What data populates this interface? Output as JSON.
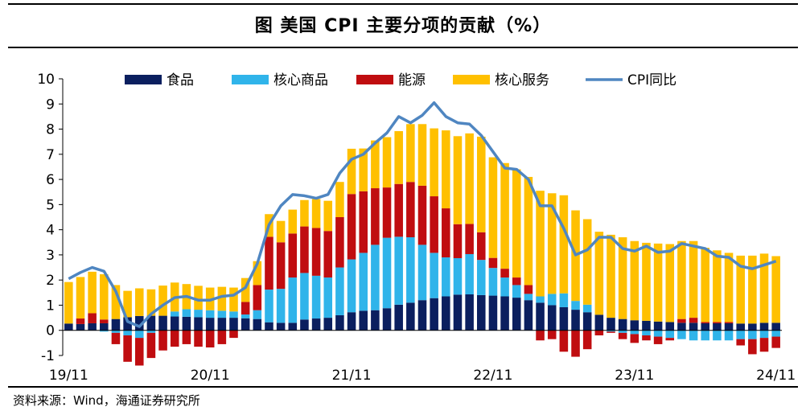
{
  "title": "图  美国 CPI 主要分项的贡献（%）",
  "source": "资料来源：Wind，海通证券研究所",
  "colors": {
    "food": "#0b1f5f",
    "core_goods": "#30b4ea",
    "energy": "#c00d10",
    "core_services": "#ffc000",
    "cpi_line": "#4f86c1"
  },
  "chart_data": {
    "type": "stacked-bar+line",
    "title": "美国 CPI 主要分项的贡献（%）",
    "xlabel": "",
    "ylabel": "",
    "ylim": [
      -1,
      10
    ],
    "yticks": [
      "-1",
      "0",
      "1",
      "2",
      "3",
      "4",
      "5",
      "6",
      "7",
      "8",
      "9",
      "10"
    ],
    "x_tick_labels": [
      {
        "label": "19/11",
        "index": 0
      },
      {
        "label": "20/11",
        "index": 12
      },
      {
        "label": "21/11",
        "index": 24
      },
      {
        "label": "22/11",
        "index": 36
      },
      {
        "label": "23/11",
        "index": 48
      },
      {
        "label": "24/11",
        "index": 60
      }
    ],
    "legend": [
      "食品",
      "核心商品",
      "能源",
      "核心服务",
      "CPI同比"
    ],
    "legend_position": "top",
    "grid": false,
    "categories": [
      "19/11",
      "19/12",
      "20/01",
      "20/02",
      "20/03",
      "20/04",
      "20/05",
      "20/06",
      "20/07",
      "20/08",
      "20/09",
      "20/10",
      "20/11",
      "20/12",
      "21/01",
      "21/02",
      "21/03",
      "21/04",
      "21/05",
      "21/06",
      "21/07",
      "21/08",
      "21/09",
      "21/10",
      "21/11",
      "21/12",
      "22/01",
      "22/02",
      "22/03",
      "22/04",
      "22/05",
      "22/06",
      "22/07",
      "22/08",
      "22/09",
      "22/10",
      "22/11",
      "22/12",
      "23/01",
      "23/02",
      "23/03",
      "23/04",
      "23/05",
      "23/06",
      "23/07",
      "23/08",
      "23/09",
      "23/10",
      "23/11",
      "23/12",
      "24/01",
      "24/02",
      "24/03",
      "24/04",
      "24/05",
      "24/06",
      "24/07",
      "24/08",
      "24/09",
      "24/10",
      "24/11"
    ],
    "series": [
      {
        "name": "食品",
        "values": [
          0.27,
          0.25,
          0.28,
          0.28,
          0.45,
          0.52,
          0.57,
          0.58,
          0.58,
          0.55,
          0.54,
          0.52,
          0.5,
          0.5,
          0.5,
          0.48,
          0.45,
          0.32,
          0.3,
          0.3,
          0.43,
          0.47,
          0.5,
          0.6,
          0.72,
          0.78,
          0.8,
          0.88,
          1.02,
          1.1,
          1.2,
          1.28,
          1.35,
          1.42,
          1.43,
          1.4,
          1.38,
          1.35,
          1.3,
          1.2,
          1.1,
          1.0,
          0.92,
          0.82,
          0.72,
          0.62,
          0.5,
          0.45,
          0.4,
          0.38,
          0.35,
          0.33,
          0.3,
          0.3,
          0.28,
          0.28,
          0.28,
          0.27,
          0.27,
          0.3,
          0.3
        ]
      },
      {
        "name": "核心商品",
        "values": [
          0,
          0,
          0,
          -0.05,
          -0.1,
          -0.2,
          -0.3,
          -0.1,
          0,
          0.2,
          0.3,
          0.3,
          0.3,
          0.28,
          0.25,
          0.15,
          0.35,
          1.3,
          1.35,
          1.8,
          1.85,
          1.7,
          1.6,
          1.9,
          2.1,
          2.3,
          2.6,
          2.8,
          2.7,
          2.6,
          2.2,
          1.8,
          1.55,
          1.45,
          1.6,
          1.4,
          1.1,
          0.75,
          0.5,
          0.25,
          0.25,
          0.45,
          0.55,
          0.35,
          0.3,
          0,
          -0.05,
          -0.1,
          -0.15,
          -0.2,
          -0.25,
          -0.3,
          -0.35,
          -0.4,
          -0.4,
          -0.4,
          -0.4,
          -0.35,
          -0.35,
          -0.3,
          -0.25
        ]
      },
      {
        "name": "能源",
        "values": [
          0,
          0.22,
          0.4,
          0.15,
          -0.45,
          -1.05,
          -1.1,
          -1.0,
          -0.8,
          -0.65,
          -0.55,
          -0.65,
          -0.68,
          -0.55,
          -0.3,
          0.5,
          1.0,
          2.1,
          1.85,
          1.75,
          1.85,
          1.9,
          1.85,
          2.0,
          2.6,
          2.45,
          2.25,
          2.0,
          2.1,
          2.2,
          2.35,
          2.25,
          1.95,
          1.35,
          1.2,
          1.1,
          0.4,
          0.35,
          0.3,
          0.35,
          -0.4,
          -0.35,
          -0.85,
          -1.05,
          -0.75,
          -0.2,
          -0.05,
          -0.25,
          -0.35,
          -0.2,
          -0.3,
          -0.1,
          0.15,
          0.2,
          0.05,
          0.05,
          0.05,
          -0.25,
          -0.6,
          -0.55,
          -0.45
        ]
      },
      {
        "name": "核心服务",
        "values": [
          1.65,
          1.65,
          1.65,
          1.8,
          1.35,
          1.05,
          1.1,
          1.05,
          1.2,
          1.15,
          1.0,
          0.95,
          0.9,
          0.95,
          0.95,
          0.95,
          0.95,
          0.9,
          0.85,
          0.95,
          1.05,
          1.15,
          1.2,
          1.4,
          1.8,
          1.7,
          1.9,
          2.0,
          2.1,
          2.3,
          2.45,
          2.7,
          3.1,
          3.5,
          3.6,
          3.8,
          4.0,
          4.2,
          4.3,
          4.3,
          4.2,
          4.0,
          3.9,
          3.6,
          3.4,
          3.3,
          3.3,
          3.25,
          3.15,
          3.1,
          3.1,
          3.1,
          3.1,
          3.05,
          2.95,
          2.85,
          2.75,
          2.7,
          2.7,
          2.75,
          2.65
        ]
      },
      {
        "name": "CPI同比",
        "type": "line",
        "values": [
          2.05,
          2.3,
          2.5,
          2.35,
          1.55,
          0.35,
          0.15,
          0.65,
          1.0,
          1.3,
          1.35,
          1.2,
          1.2,
          1.35,
          1.4,
          1.7,
          2.65,
          4.2,
          4.95,
          5.4,
          5.35,
          5.25,
          5.4,
          6.25,
          6.8,
          7.0,
          7.45,
          7.85,
          8.5,
          8.25,
          8.55,
          9.05,
          8.5,
          8.25,
          8.2,
          7.75,
          7.1,
          6.45,
          6.4,
          6.0,
          4.95,
          4.95,
          4.05,
          3.0,
          3.2,
          3.7,
          3.7,
          3.25,
          3.15,
          3.35,
          3.1,
          3.15,
          3.45,
          3.35,
          3.25,
          2.95,
          2.9,
          2.55,
          2.45,
          2.6,
          2.75
        ]
      }
    ]
  }
}
